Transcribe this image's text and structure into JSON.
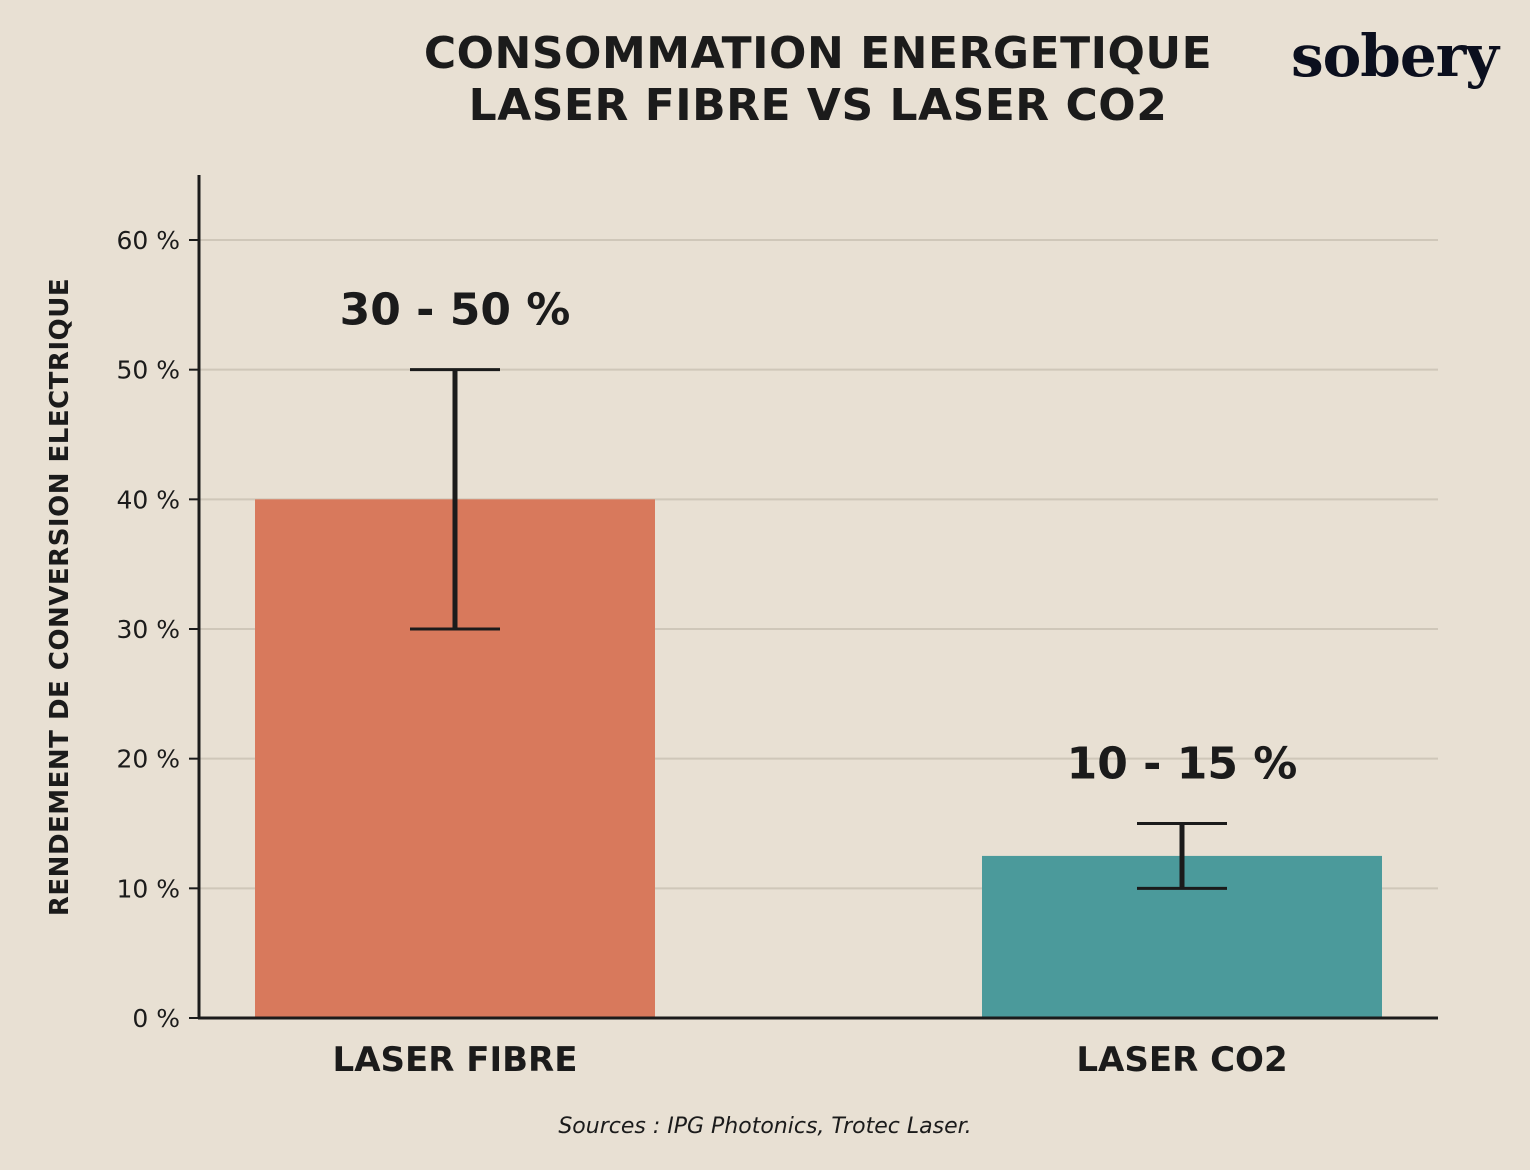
{
  "chart_data": {
    "type": "bar",
    "title": [
      "CONSOMMATION ENERGETIQUE",
      "LASER FIBRE VS LASER CO2"
    ],
    "ylabel": "RENDEMENT DE CONVERSION ELECTRIQUE",
    "xlabel": "",
    "categories": [
      "LASER FIBRE",
      "LASER CO2"
    ],
    "values": [
      40,
      12.5
    ],
    "error_ranges": [
      [
        30,
        50
      ],
      [
        10,
        15
      ]
    ],
    "data_labels": [
      "30 - 50 %",
      "10 - 15 %"
    ],
    "colors": [
      "#d8795c",
      "#4b9a9b"
    ],
    "ylim": [
      0,
      65
    ],
    "yticks": [
      0,
      10,
      20,
      30,
      40,
      50,
      60
    ],
    "ytick_labels": [
      "0 %",
      "10 %",
      "20 %",
      "30 %",
      "40 %",
      "50 %",
      "60 %"
    ],
    "grid": true,
    "legend": "none"
  },
  "brand": {
    "logo_text": "sobery"
  },
  "footer": {
    "source": "Sources : IPG Photonics, Trotec Laser."
  }
}
